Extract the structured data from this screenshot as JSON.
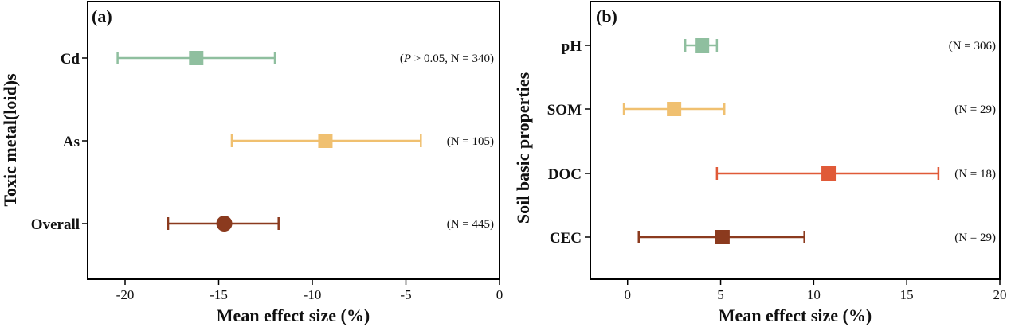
{
  "chart_data": [
    {
      "type": "forest",
      "panel_label": "(a)",
      "xlabel": "Mean effect size (%)",
      "ylabel": "Toxic metal(loid)s",
      "xlim": [
        -22,
        0
      ],
      "xticks": [
        "-20",
        "-15",
        "-10",
        "-5",
        "0"
      ],
      "xtick_values": [
        -20,
        -15,
        -10,
        -5,
        0
      ],
      "rows": [
        {
          "category": "Cd",
          "mean": -16.2,
          "lower": -20.4,
          "upper": -12.0,
          "marker": "square",
          "color": "#8fbf9f",
          "annotation_pre": "(",
          "annotation_italic": "P",
          "annotation_post": " > 0.05, N = 340)"
        },
        {
          "category": "As",
          "mean": -9.3,
          "lower": -14.3,
          "upper": -4.2,
          "marker": "square",
          "color": "#f0c070",
          "annotation_pre": "(N = 105)",
          "annotation_italic": "",
          "annotation_post": ""
        },
        {
          "category": "Overall",
          "mean": -14.7,
          "lower": -17.7,
          "upper": -11.8,
          "marker": "circle",
          "color": "#8b3a1e",
          "annotation_pre": "(N = 445)",
          "annotation_italic": "",
          "annotation_post": ""
        }
      ]
    },
    {
      "type": "forest",
      "panel_label": "(b)",
      "xlabel": "Mean effect size (%)",
      "ylabel": "Soil basic properties",
      "xlim": [
        -2,
        20
      ],
      "xticks": [
        "0",
        "5",
        "10",
        "15",
        "20"
      ],
      "xtick_values": [
        0,
        5,
        10,
        15,
        20
      ],
      "rows": [
        {
          "category": "pH",
          "mean": 4.0,
          "lower": 3.1,
          "upper": 4.8,
          "marker": "square",
          "color": "#8fbf9f",
          "annotation_pre": "(N = 306)",
          "annotation_italic": "",
          "annotation_post": ""
        },
        {
          "category": "SOM",
          "mean": 2.5,
          "lower": -0.2,
          "upper": 5.2,
          "marker": "square",
          "color": "#f0c070",
          "annotation_pre": "(N = 29)",
          "annotation_italic": "",
          "annotation_post": ""
        },
        {
          "category": "DOC",
          "mean": 10.8,
          "lower": 4.8,
          "upper": 16.7,
          "marker": "square",
          "color": "#e05a38",
          "annotation_pre": "(N = 18)",
          "annotation_italic": "",
          "annotation_post": ""
        },
        {
          "category": "CEC",
          "mean": 5.1,
          "lower": 0.6,
          "upper": 9.5,
          "marker": "square",
          "color": "#8b3a1e",
          "annotation_pre": "(N = 29)",
          "annotation_italic": "",
          "annotation_post": ""
        }
      ]
    }
  ]
}
